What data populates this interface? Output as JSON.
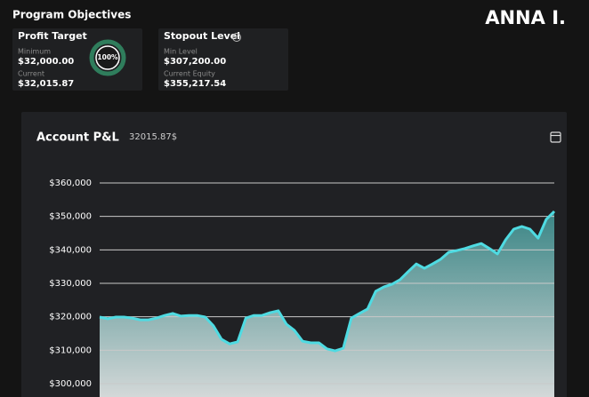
{
  "header": {
    "title": "Program Objectives",
    "user": "ANNA I."
  },
  "cards": [
    {
      "title": "Profit Target",
      "progress": "100%",
      "rows": [
        {
          "label": "Minimum",
          "value": "$32,000.00"
        },
        {
          "label": "Current",
          "value": "$32,015.87"
        }
      ]
    },
    {
      "title": "Stopout Level",
      "rows": [
        {
          "label": "Min Level",
          "value": "$307,200.00"
        },
        {
          "label": "Current Equity",
          "value": "$355,217.54"
        }
      ]
    }
  ],
  "chart_data": {
    "type": "area",
    "title": "Account P&L",
    "subtitle": "32015.87$",
    "color": "#4fdbe2",
    "grid": true,
    "ylim": [
      300000,
      360000
    ],
    "yticks": [
      {
        "value": 300000,
        "label": "$300,000"
      },
      {
        "value": 310000,
        "label": "$310,000"
      },
      {
        "value": 320000,
        "label": "$320,000"
      },
      {
        "value": 330000,
        "label": "$330,000"
      },
      {
        "value": 340000,
        "label": "$340,000"
      },
      {
        "value": 350000,
        "label": "$350,000"
      },
      {
        "value": 360000,
        "label": "$360,000"
      }
    ],
    "values": [
      319900,
      319400,
      319900,
      319900,
      319600,
      319100,
      319100,
      319600,
      320400,
      321000,
      320200,
      320400,
      320400,
      319900,
      317300,
      313300,
      311900,
      312500,
      319600,
      320400,
      320400,
      321200,
      321800,
      317800,
      315900,
      312700,
      312200,
      312200,
      310400,
      309800,
      310600,
      319600,
      321000,
      322300,
      327600,
      328900,
      329700,
      331100,
      333500,
      335800,
      334500,
      335800,
      337200,
      339300,
      339800,
      340400,
      341200,
      341900,
      340400,
      338800,
      343000,
      346200,
      347000,
      346200,
      343500,
      349100,
      351500
    ]
  }
}
